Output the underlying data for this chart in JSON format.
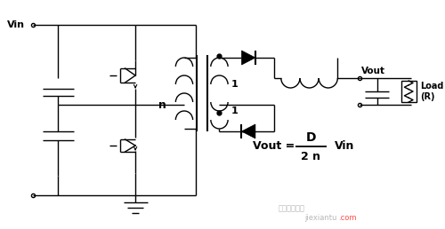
{
  "bg_color": "#ffffff",
  "line_color": "#000000",
  "fig_width": 5.0,
  "fig_height": 2.58,
  "dpi": 100,
  "vout_label": "Vout",
  "load_label": "Load\n(R)",
  "vin_label": "Vin",
  "n_label": "n",
  "one_top": "1",
  "one_bot": "1",
  "watermark_text": "便据线图力库",
  "watermark2": "jiexiantu",
  "watermark3": ".com"
}
